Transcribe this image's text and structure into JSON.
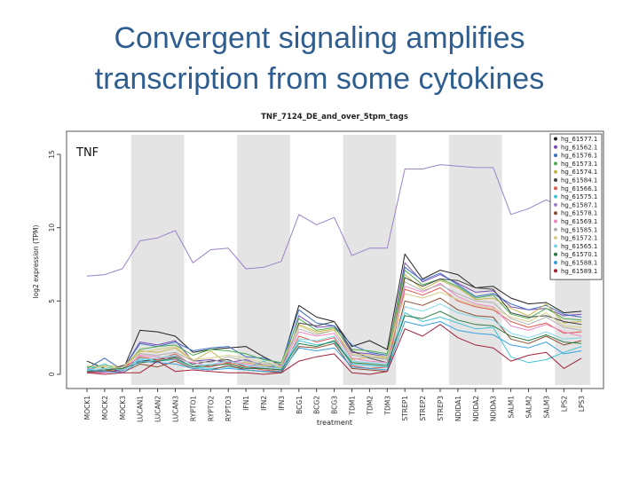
{
  "slide": {
    "title_line1": "Convergent signaling amplifies",
    "title_line2": "transcription from some cytokines"
  },
  "chart_data": {
    "type": "line",
    "title": "TNF_7124_DE_and_over_5tpm_tags",
    "annotation": "TNF",
    "xlabel": "treatment",
    "ylabel": "log2 expression (TPM)",
    "ylim": [
      0,
      15
    ],
    "yticks": [
      0,
      5,
      10,
      15
    ],
    "grid": false,
    "legend_position": "top-right",
    "categories": [
      "MOCK1",
      "MOCK2",
      "MOCK3",
      "LUCAN1",
      "LUCAN2",
      "LUCAN3",
      "RYPTO1",
      "RYPTO2",
      "RYPTO3",
      "IFN1",
      "IFN2",
      "IFN3",
      "BCG1",
      "BCG2",
      "BCG3",
      "TDM1",
      "TDM2",
      "TDM3",
      "STREP1",
      "STREP2",
      "STREP3",
      "NDIDA1",
      "NDIDA2",
      "NDIDA3",
      "SALM1",
      "SALM2",
      "SALM3",
      "LPS2",
      "LPS3"
    ],
    "shaded_groups": [
      [
        3,
        5
      ],
      [
        9,
        11
      ],
      [
        15,
        17
      ],
      [
        21,
        23
      ],
      [
        27,
        28
      ]
    ],
    "series": [
      {
        "name": "hg_61577.1",
        "color": "#222222",
        "values": [
          0.9,
          0.4,
          0.2,
          3.0,
          2.9,
          2.6,
          1.5,
          1.7,
          1.8,
          1.9,
          1.2,
          0.6,
          4.7,
          3.9,
          3.6,
          1.9,
          2.3,
          1.7,
          8.2,
          6.5,
          7.1,
          6.8,
          5.9,
          6.0,
          5.2,
          4.8,
          4.9,
          4.2,
          4.3
        ]
      },
      {
        "name": "hg_61562.1",
        "color": "#7b4db3",
        "values": [
          0.2,
          0.1,
          0.3,
          2.2,
          2.0,
          2.3,
          0.9,
          1.0,
          0.8,
          1.0,
          0.6,
          0.4,
          4.0,
          3.2,
          3.3,
          1.5,
          1.4,
          1.2,
          7.6,
          6.3,
          6.8,
          6.2,
          5.6,
          5.7,
          4.6,
          4.4,
          4.5,
          4.0,
          4.1
        ]
      },
      {
        "name": "hg_61576.1",
        "color": "#3a6fc4",
        "values": [
          0.4,
          1.1,
          0.3,
          2.1,
          1.9,
          2.2,
          1.6,
          1.8,
          1.9,
          1.2,
          1.1,
          0.7,
          4.4,
          3.5,
          3.3,
          2.0,
          1.5,
          1.3,
          7.3,
          6.4,
          6.9,
          6.1,
          5.3,
          5.5,
          4.8,
          4.4,
          4.7,
          4.1,
          3.9
        ]
      },
      {
        "name": "hg_61573.1",
        "color": "#4caf50",
        "values": [
          0.5,
          0.5,
          0.3,
          1.7,
          1.9,
          2.0,
          1.3,
          1.7,
          1.6,
          1.4,
          1.0,
          0.8,
          3.8,
          3.0,
          3.2,
          1.7,
          1.6,
          1.4,
          7.1,
          6.1,
          6.5,
          6.0,
          5.2,
          5.4,
          4.1,
          3.8,
          4.5,
          3.8,
          3.7
        ]
      },
      {
        "name": "hg_61574.1",
        "color": "#c5b44a",
        "values": [
          0.3,
          0.6,
          0.5,
          1.6,
          1.5,
          1.8,
          0.9,
          1.6,
          0.7,
          0.8,
          0.6,
          0.5,
          3.4,
          2.9,
          3.1,
          1.0,
          1.2,
          1.1,
          6.8,
          5.8,
          6.4,
          5.9,
          5.1,
          5.2,
          4.5,
          4.0,
          4.8,
          3.5,
          3.6
        ]
      },
      {
        "name": "hg_61584.1",
        "color": "#444444",
        "values": [
          0.1,
          0.2,
          0.6,
          0.9,
          1.0,
          1.2,
          0.7,
          0.9,
          1.0,
          0.5,
          0.4,
          0.3,
          3.5,
          3.3,
          3.6,
          1.6,
          1.1,
          0.8,
          6.6,
          6.0,
          6.5,
          6.4,
          5.9,
          5.8,
          4.2,
          3.9,
          4.0,
          3.6,
          3.4
        ]
      },
      {
        "name": "hg_61566.1",
        "color": "#e05a4e",
        "values": [
          0.2,
          0.2,
          0.4,
          1.2,
          1.0,
          1.4,
          0.6,
          0.5,
          0.8,
          0.5,
          0.3,
          0.2,
          2.6,
          2.2,
          2.5,
          0.6,
          0.4,
          0.5,
          5.8,
          5.4,
          5.9,
          5.0,
          4.6,
          4.4,
          3.6,
          3.2,
          3.5,
          2.8,
          2.9
        ]
      },
      {
        "name": "hg_61575.1",
        "color": "#40c4d8",
        "values": [
          0.3,
          0.7,
          0.2,
          1.1,
          0.9,
          1.0,
          0.5,
          0.4,
          0.5,
          0.4,
          0.9,
          0.3,
          2.3,
          2.0,
          2.2,
          0.7,
          0.6,
          0.5,
          4.2,
          3.6,
          3.9,
          3.5,
          3.1,
          3.2,
          1.2,
          0.8,
          1.0,
          1.5,
          1.9
        ]
      },
      {
        "name": "hg_61587.1",
        "color": "#9b82c9",
        "values": [
          6.7,
          6.8,
          7.2,
          9.1,
          9.3,
          9.8,
          7.6,
          8.5,
          8.6,
          7.2,
          7.3,
          7.7,
          10.9,
          10.2,
          10.7,
          8.1,
          8.6,
          8.6,
          14.0,
          14.0,
          14.3,
          14.2,
          14.1,
          14.1,
          10.9,
          11.3,
          11.9,
          11.3,
          11.5
        ]
      },
      {
        "name": "hg_61578.1",
        "color": "#8b4a2e",
        "values": [
          0.2,
          0.3,
          0.1,
          0.7,
          0.5,
          0.9,
          0.4,
          0.3,
          0.6,
          0.3,
          0.2,
          0.1,
          1.9,
          1.8,
          2.1,
          0.4,
          0.3,
          0.2,
          5.0,
          4.7,
          5.2,
          4.4,
          4.0,
          3.9,
          2.4,
          2.1,
          2.6,
          2.0,
          2.3
        ]
      },
      {
        "name": "hg_61569.1",
        "color": "#ef86c4",
        "values": [
          0.1,
          0.1,
          0.2,
          1.3,
          1.2,
          1.0,
          0.8,
          0.6,
          0.9,
          0.7,
          0.5,
          0.4,
          2.9,
          2.6,
          2.8,
          1.1,
          0.9,
          0.8,
          6.0,
          5.6,
          6.2,
          5.3,
          4.8,
          4.6,
          3.3,
          3.0,
          3.4,
          2.9,
          2.6
        ]
      },
      {
        "name": "hg_61585.1",
        "color": "#b0b0b0",
        "values": [
          0.4,
          0.3,
          0.5,
          1.4,
          1.3,
          1.5,
          0.9,
          0.8,
          1.2,
          0.9,
          0.7,
          0.6,
          3.1,
          2.7,
          3.0,
          1.3,
          1.2,
          1.0,
          6.3,
          5.7,
          6.1,
          5.5,
          5.0,
          4.9,
          3.8,
          3.4,
          3.9,
          3.2,
          3.0
        ]
      },
      {
        "name": "hg_61572.1",
        "color": "#d5cf8a",
        "values": [
          0.6,
          0.5,
          0.4,
          1.5,
          1.7,
          1.9,
          1.0,
          1.1,
          1.3,
          1.1,
          0.8,
          0.7,
          3.3,
          2.8,
          3.0,
          1.4,
          1.3,
          1.2,
          5.5,
          5.2,
          5.6,
          5.1,
          4.7,
          4.5,
          3.9,
          3.6,
          4.2,
          3.3,
          3.2
        ]
      },
      {
        "name": "hg_61565.1",
        "color": "#7fd6e8",
        "values": [
          0.3,
          0.4,
          0.3,
          1.0,
          1.1,
          1.3,
          0.6,
          0.7,
          0.9,
          0.6,
          0.5,
          0.4,
          2.4,
          2.3,
          2.6,
          0.9,
          0.8,
          0.7,
          4.6,
          4.3,
          4.8,
          4.2,
          3.9,
          3.7,
          2.8,
          2.5,
          2.9,
          2.4,
          2.5
        ]
      },
      {
        "name": "hg_61570.1",
        "color": "#2d7a45",
        "values": [
          0.2,
          0.3,
          0.4,
          0.8,
          0.9,
          1.1,
          0.5,
          0.6,
          0.7,
          0.4,
          0.4,
          0.3,
          2.1,
          1.9,
          2.3,
          0.8,
          0.7,
          0.6,
          4.0,
          3.8,
          4.3,
          3.7,
          3.4,
          3.3,
          2.6,
          2.3,
          2.7,
          2.2,
          2.1
        ]
      },
      {
        "name": "hg_61588.1",
        "color": "#3aa0e0",
        "values": [
          0.3,
          0.2,
          0.1,
          0.9,
          0.8,
          0.7,
          0.4,
          0.3,
          0.4,
          0.3,
          0.2,
          0.2,
          1.8,
          1.6,
          1.8,
          0.5,
          0.4,
          0.3,
          3.6,
          3.3,
          3.6,
          3.0,
          2.8,
          2.7,
          2.0,
          1.8,
          2.2,
          1.4,
          1.6
        ]
      },
      {
        "name": "hg_61589.1",
        "color": "#a0223b",
        "values": [
          0.1,
          0.0,
          0.1,
          0.1,
          0.9,
          0.2,
          0.3,
          0.2,
          0.1,
          0.1,
          0.0,
          0.1,
          0.9,
          1.2,
          1.4,
          0.1,
          0.0,
          0.2,
          3.1,
          2.6,
          3.4,
          2.5,
          2.0,
          1.8,
          0.9,
          1.3,
          1.5,
          0.4,
          1.1
        ]
      }
    ]
  }
}
